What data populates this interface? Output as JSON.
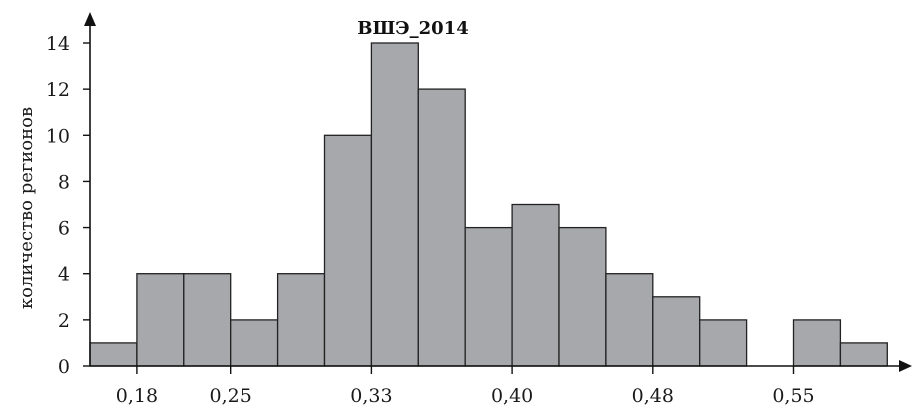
{
  "chart_data": {
    "type": "bar",
    "title": "ВШЭ_2014",
    "ylabel": "количество регионов",
    "xlabel": "",
    "ylim": [
      0,
      14
    ],
    "yticks": [
      0,
      2,
      4,
      6,
      8,
      10,
      12,
      14
    ],
    "x_tick_labels": [
      "0,18",
      "0,25",
      "0,33",
      "0,40",
      "0,48",
      "0,55"
    ],
    "x_tick_bin_index": [
      1,
      3,
      6,
      9,
      12,
      15
    ],
    "values": [
      1,
      4,
      4,
      2,
      4,
      10,
      14,
      12,
      6,
      7,
      6,
      4,
      3,
      2,
      0,
      2,
      1
    ],
    "grid": false,
    "bar_color": "#a7a8ab"
  }
}
